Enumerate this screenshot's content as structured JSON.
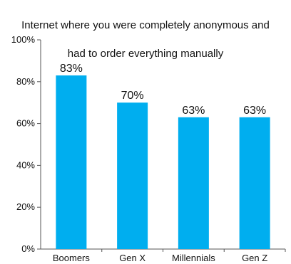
{
  "chart_data": {
    "type": "bar",
    "title": "Internet where you were completely anonymous and had to order everything manually",
    "title_lines": [
      "Internet where you were completely anonymous and",
      "had to order everything manually"
    ],
    "categories": [
      "Boomers",
      "Gen X",
      "Millennials",
      "Gen Z"
    ],
    "values": [
      83,
      70,
      63,
      63
    ],
    "value_labels": [
      "83%",
      "70%",
      "63%",
      "63%"
    ],
    "ylim": [
      0,
      100
    ],
    "yticks": [
      0,
      20,
      40,
      60,
      80,
      100
    ],
    "ytick_labels": [
      "0%",
      "20%",
      "40%",
      "60%",
      "80%",
      "100%"
    ],
    "xlabel": "",
    "ylabel": "",
    "grid": false,
    "legend": "none",
    "bar_color": "#00aeef",
    "axis_color": "#555555"
  }
}
